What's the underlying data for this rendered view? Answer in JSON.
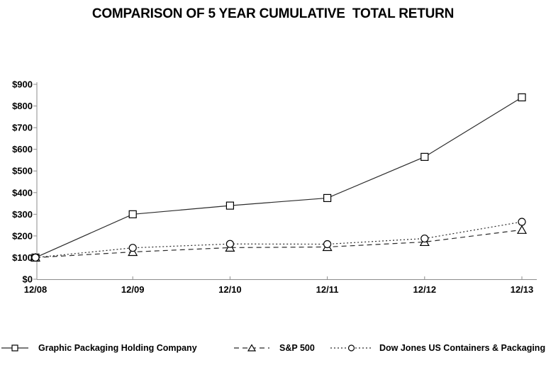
{
  "title": "COMPARISON OF 5 YEAR CUMULATIVE  TOTAL RETURN",
  "colors": {
    "background": "#ffffff",
    "axis": "#8c8c8c",
    "text": "#000000",
    "series_line": "#2b2b2b",
    "marker_fill": "#ffffff",
    "marker_stroke": "#000000"
  },
  "chart_data": {
    "type": "line",
    "title": "COMPARISON OF 5 YEAR CUMULATIVE TOTAL RETURN",
    "categories": [
      "12/08",
      "12/09",
      "12/10",
      "12/11",
      "12/12",
      "12/13"
    ],
    "series": [
      {
        "name": "Graphic Packaging Holding Company",
        "marker": "square",
        "line": "solid",
        "values": [
          100,
          300,
          340,
          375,
          565,
          840
        ]
      },
      {
        "name": "S&P 500",
        "marker": "triangle",
        "line": "dashed",
        "values": [
          100,
          126,
          146,
          149,
          172,
          228
        ]
      },
      {
        "name": "Dow Jones US Containers & Packaging",
        "marker": "circle",
        "line": "dotted",
        "values": [
          100,
          145,
          163,
          162,
          188,
          265
        ]
      }
    ],
    "xlabel": "",
    "ylabel": "",
    "ylim": [
      0,
      900
    ],
    "ytick_step": 100,
    "ytick_prefix": "$",
    "grid": false,
    "legend_position": "bottom"
  }
}
